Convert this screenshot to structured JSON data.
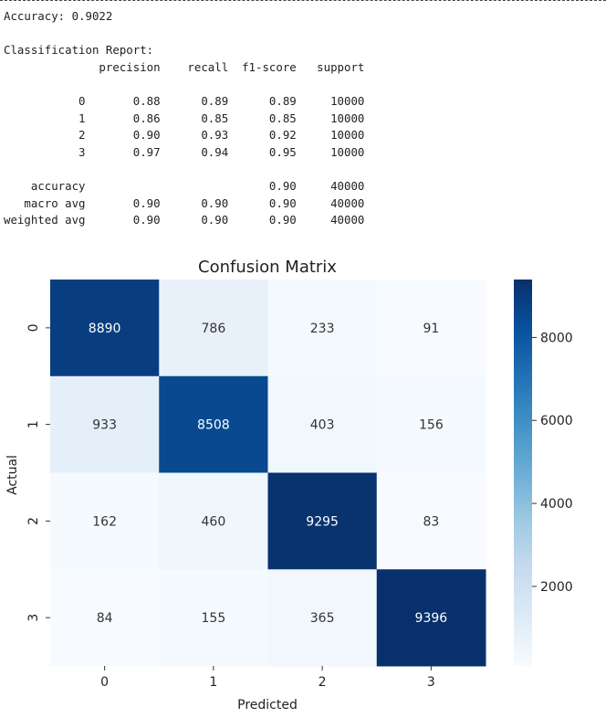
{
  "output": {
    "accuracy_line": "Accuracy: 0.9022",
    "report_title": "Classification Report:",
    "report_header": "              precision    recall  f1-score   support",
    "report_rows": [
      "           0       0.88      0.89      0.89     10000",
      "           1       0.86      0.85      0.85     10000",
      "           2       0.90      0.93      0.92     10000",
      "           3       0.97      0.94      0.95     10000"
    ],
    "report_summary": [
      "    accuracy                           0.90     40000",
      "   macro avg       0.90      0.90      0.90     40000",
      "weighted avg       0.90      0.90      0.90     40000"
    ]
  },
  "chart_data": {
    "type": "heatmap",
    "title": "Confusion Matrix",
    "xlabel": "Predicted",
    "ylabel": "Actual",
    "x_categories": [
      "0",
      "1",
      "2",
      "3"
    ],
    "y_categories": [
      "0",
      "1",
      "2",
      "3"
    ],
    "values": [
      [
        8890,
        786,
        233,
        91
      ],
      [
        933,
        8508,
        403,
        156
      ],
      [
        162,
        460,
        9295,
        83
      ],
      [
        84,
        155,
        365,
        9396
      ]
    ],
    "colormap": "Blues",
    "colorbar_ticks": [
      2000,
      4000,
      6000,
      8000
    ],
    "colorbar_range": [
      83,
      9396
    ]
  }
}
